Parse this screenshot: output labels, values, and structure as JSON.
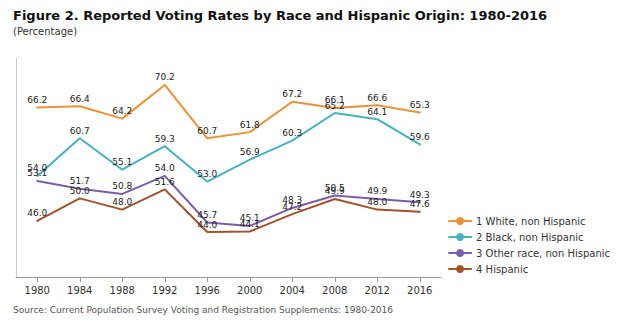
{
  "chart_data": {
    "type": "line",
    "title": "Figure 2. Reported Voting Rates by Race and Hispanic Origin: 1980-2016",
    "subtitle": "(Percentage)",
    "source": "Source: Current Population Survey Voting and Registration Supplements: 1980-2016",
    "x": [
      1980,
      1984,
      1988,
      1992,
      1996,
      2000,
      2004,
      2008,
      2012,
      2016
    ],
    "xlim": [
      1978,
      2018
    ],
    "xticks": [
      1980,
      1984,
      1988,
      1992,
      1996,
      2000,
      2004,
      2008,
      2012,
      2016
    ],
    "ylim": [
      36,
      75
    ],
    "tick_labels": "x",
    "grid": false,
    "legend": "lower right",
    "data_labels": true,
    "series": [
      {
        "name": "1 White, non Hispanic",
        "color": "#E8923A",
        "values": [
          66.2,
          66.4,
          64.2,
          70.2,
          60.7,
          61.8,
          67.2,
          66.1,
          66.6,
          65.3
        ],
        "value_labels": [
          "66.2",
          "66.4",
          "64.2",
          "70.2",
          "60.7",
          "61.8",
          "67.2",
          "66.1",
          "66.6",
          "65.3"
        ]
      },
      {
        "name": "2 Black, non Hispanic",
        "color": "#4AAFBE",
        "values": [
          54.0,
          60.7,
          55.1,
          59.3,
          53.0,
          56.9,
          60.3,
          65.2,
          64.1,
          59.6
        ],
        "value_labels": [
          "54.0",
          "60.7",
          "55.1",
          "59.3",
          "53.0",
          "56.9",
          "60.3",
          "65.2",
          "64.1",
          "59.6"
        ]
      },
      {
        "name": "3 Other race, non Hispanic",
        "color": "#7B5EA7",
        "values": [
          53.1,
          51.7,
          50.8,
          54.0,
          45.7,
          45.1,
          48.3,
          50.5,
          49.9,
          49.3
        ],
        "value_labels": [
          "53.1",
          "51.7",
          "50.8",
          "54.0",
          "45.7",
          "45.1",
          "48.3",
          "50.5",
          "49.9",
          "49.3"
        ]
      },
      {
        "name": "4 Hispanic",
        "color": "#A0522D",
        "values": [
          46.0,
          50.0,
          48.0,
          51.6,
          44.0,
          44.1,
          47.2,
          49.9,
          48.0,
          47.6
        ],
        "value_labels": [
          "46.0",
          "50.0",
          "48.0",
          "51.6",
          "44.0",
          "44.1",
          "47.2",
          "49.9",
          "48.0",
          "47.6"
        ]
      }
    ]
  }
}
